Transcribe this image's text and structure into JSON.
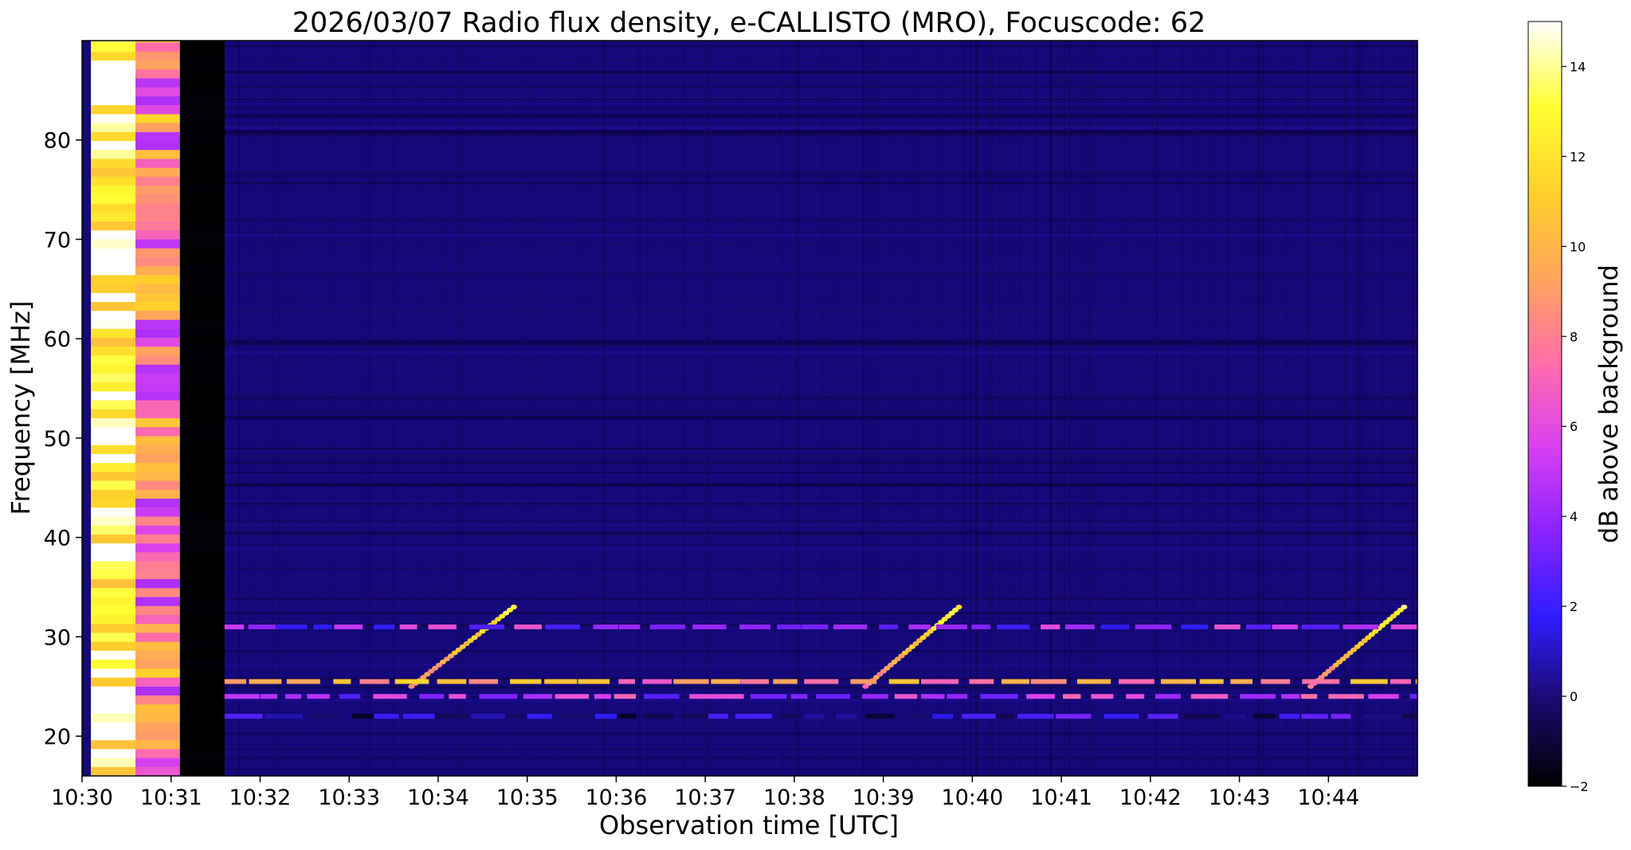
{
  "chart_data": {
    "type": "heatmap",
    "title": "2026/03/07  Radio flux density, e-CALLISTO (MRO), Focuscode: 62",
    "xlabel": "Observation time [UTC]",
    "ylabel": "Frequency [MHz]",
    "colorbar_label": "dB above background",
    "xlim_minutes": [
      0,
      15
    ],
    "ylim": [
      16,
      90
    ],
    "x_ticks": [
      {
        "m": 0,
        "label": "10:30"
      },
      {
        "m": 1,
        "label": "10:31"
      },
      {
        "m": 2,
        "label": "10:32"
      },
      {
        "m": 3,
        "label": "10:33"
      },
      {
        "m": 4,
        "label": "10:34"
      },
      {
        "m": 5,
        "label": "10:35"
      },
      {
        "m": 6,
        "label": "10:36"
      },
      {
        "m": 7,
        "label": "10:37"
      },
      {
        "m": 8,
        "label": "10:38"
      },
      {
        "m": 9,
        "label": "10:39"
      },
      {
        "m": 10,
        "label": "10:40"
      },
      {
        "m": 11,
        "label": "10:41"
      },
      {
        "m": 12,
        "label": "10:42"
      },
      {
        "m": 13,
        "label": "10:43"
      },
      {
        "m": 14,
        "label": "10:44"
      }
    ],
    "y_ticks": [
      20,
      30,
      40,
      50,
      60,
      70,
      80
    ],
    "colorbar_range": [
      -2,
      15
    ],
    "colorbar_ticks": [
      -2,
      0,
      2,
      4,
      6,
      8,
      10,
      12,
      14
    ],
    "colormap": [
      "#000000",
      "#1a0a6e",
      "#2f1dff",
      "#8a23ff",
      "#d840f0",
      "#ff6fa8",
      "#ffa65a",
      "#ffd02a",
      "#ffff33",
      "#ffffff"
    ],
    "background_color": "#14087a",
    "features": [
      {
        "name": "broadband interference",
        "t_start": 0.1,
        "t_end": 0.6,
        "f_low": 16,
        "f_high": 90,
        "level": 14
      },
      {
        "name": "broadband interference",
        "t_start": 0.6,
        "t_end": 1.1,
        "f_low": 16,
        "f_high": 90,
        "level": 8
      },
      {
        "name": "receiver gap",
        "t_start": 1.1,
        "t_end": 1.6,
        "f_low": 16,
        "f_high": 90,
        "level": -2
      },
      {
        "name": "drifting burst",
        "t_start": 3.7,
        "t_end": 4.85,
        "f_start": 25,
        "f_end": 33,
        "level": 13
      },
      {
        "name": "drifting burst",
        "t_start": 8.8,
        "t_end": 9.85,
        "f_start": 25,
        "f_end": 33,
        "level": 13
      },
      {
        "name": "drifting burst",
        "t_start": 13.8,
        "t_end": 14.85,
        "f_start": 25,
        "f_end": 33,
        "level": 13
      },
      {
        "name": "narrowband line",
        "t_start": 1.6,
        "t_end": 15,
        "f": 31,
        "level": 4
      },
      {
        "name": "narrowband line",
        "t_start": 1.6,
        "t_end": 15,
        "f": 25.5,
        "level": 9
      },
      {
        "name": "narrowband line",
        "t_start": 1.6,
        "t_end": 15,
        "f": 24,
        "level": 5
      },
      {
        "name": "narrowband line",
        "t_start": 1.6,
        "t_end": 15,
        "f": 22,
        "level": 1
      }
    ]
  }
}
